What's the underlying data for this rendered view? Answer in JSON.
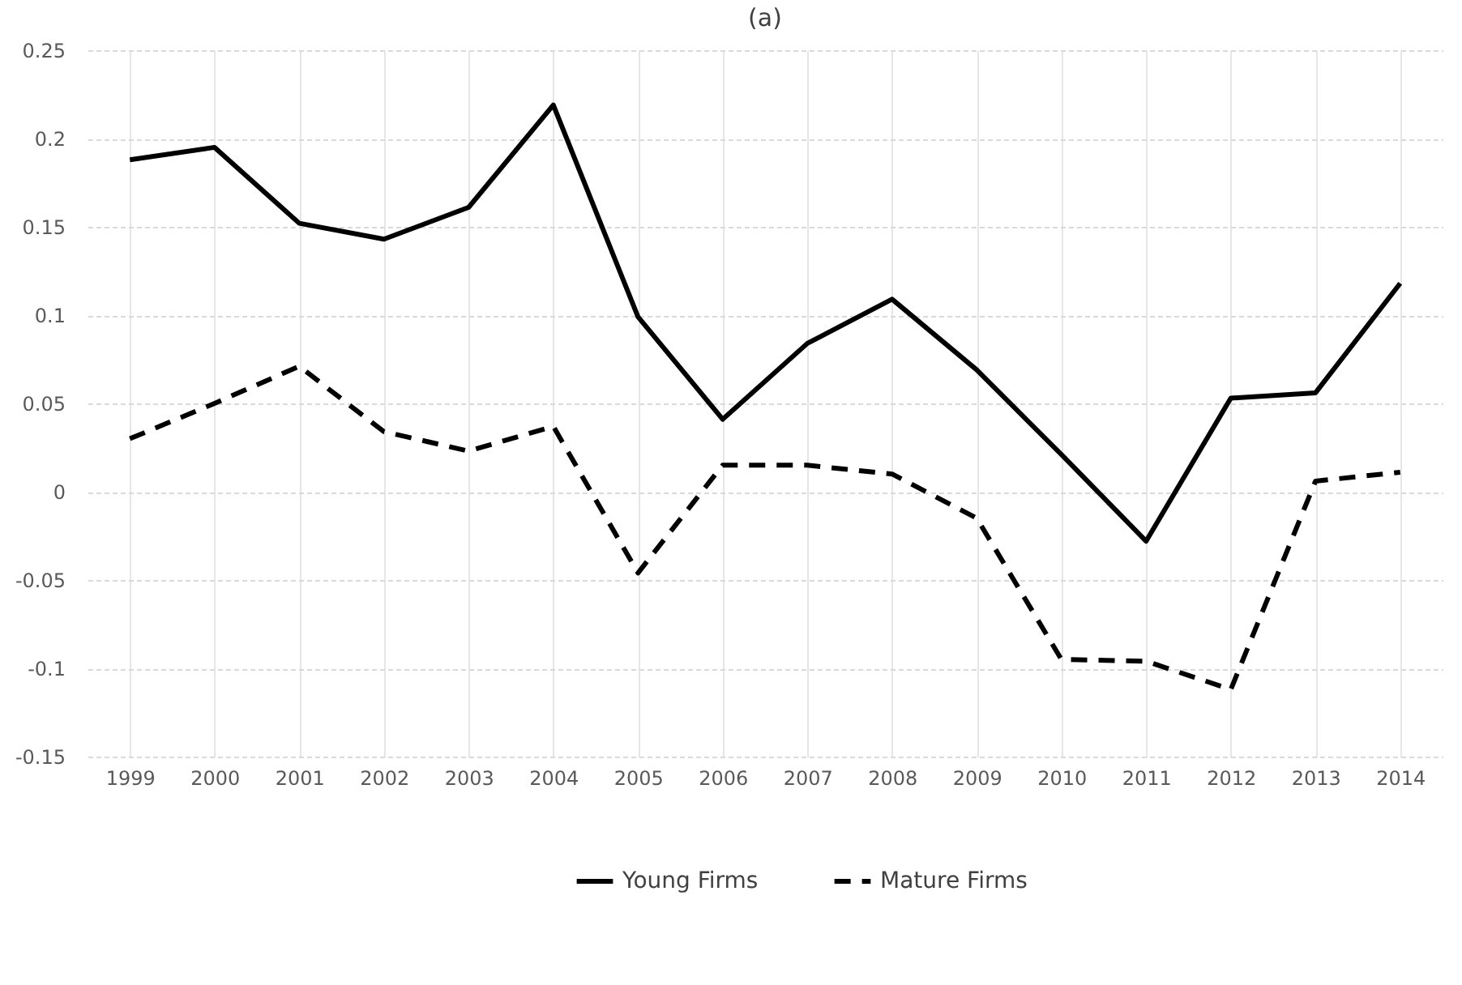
{
  "chart_data": {
    "type": "line",
    "title": "(a)",
    "categories": [
      "1999",
      "2000",
      "2001",
      "2002",
      "2003",
      "2004",
      "2005",
      "2006",
      "2007",
      "2008",
      "2009",
      "2010",
      "2011",
      "2012",
      "2013",
      "2014"
    ],
    "series": [
      {
        "name": "Young Firms",
        "color": "#000000",
        "line_style": "solid",
        "values": [
          0.188,
          0.195,
          0.152,
          0.143,
          0.161,
          0.219,
          0.099,
          0.041,
          0.084,
          0.109,
          0.069,
          0.021,
          -0.028,
          0.053,
          0.056,
          0.118
        ]
      },
      {
        "name": "Mature Firms",
        "color": "#000000",
        "line_style": "dashed",
        "values": [
          0.03,
          0.05,
          0.071,
          0.034,
          0.023,
          0.037,
          -0.046,
          0.015,
          0.015,
          0.01,
          -0.015,
          -0.095,
          -0.096,
          -0.112,
          0.006,
          0.011
        ]
      }
    ],
    "ylim": [
      -0.15,
      0.25
    ],
    "yticks": [
      -0.15,
      -0.1,
      -0.05,
      0,
      0.05,
      0.1,
      0.15,
      0.2,
      0.25
    ],
    "grid": true,
    "legend": "bottom",
    "marker": "none"
  }
}
